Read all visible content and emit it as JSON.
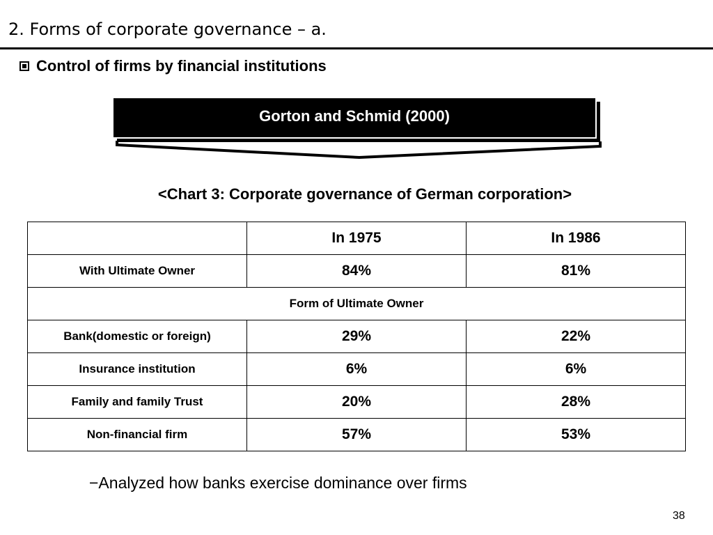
{
  "slide": {
    "title": "2. Forms of corporate governance – a.",
    "subtitle": "Control of firms by financial institutions",
    "banner": "Gorton and Schmid (2000)",
    "chart_caption": "<Chart 3: Corporate governance of German corporation>",
    "note": "−Analyzed how banks exercise dominance over firms",
    "page_number": "38"
  },
  "table": {
    "headers": [
      "",
      "In 1975",
      "In 1986"
    ],
    "rows": [
      {
        "label": "With Ultimate Owner",
        "v1975": "84%",
        "v1986": "81%"
      },
      {
        "span": "Form of Ultimate Owner"
      },
      {
        "label": "Bank(domestic or foreign)",
        "v1975": "29%",
        "v1986": "22%"
      },
      {
        "label": "Insurance institution",
        "v1975": "6%",
        "v1986": "6%"
      },
      {
        "label": "Family and family Trust",
        "v1975": "20%",
        "v1986": "28%"
      },
      {
        "label": "Non-financial firm",
        "v1975": "57%",
        "v1986": "53%"
      }
    ]
  }
}
